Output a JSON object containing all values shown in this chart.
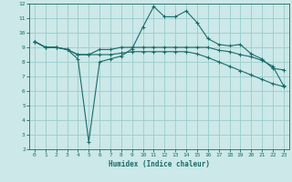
{
  "xlabel": "Humidex (Indice chaleur)",
  "bg_color": "#cce8e8",
  "grid_color": "#99cccc",
  "line_color": "#1a6b6b",
  "xlim": [
    -0.5,
    23.5
  ],
  "ylim": [
    2,
    12
  ],
  "xticks": [
    0,
    1,
    2,
    3,
    4,
    5,
    6,
    7,
    8,
    9,
    10,
    11,
    12,
    13,
    14,
    15,
    16,
    17,
    18,
    19,
    20,
    21,
    22,
    23
  ],
  "yticks": [
    2,
    3,
    4,
    5,
    6,
    7,
    8,
    9,
    10,
    11,
    12
  ],
  "line1_x": [
    0,
    1,
    2,
    3,
    4,
    5,
    6,
    7,
    8,
    9,
    10,
    11,
    12,
    13,
    14,
    15,
    16,
    17,
    18,
    19,
    20,
    21,
    22,
    23
  ],
  "line1_y": [
    9.4,
    9.0,
    9.0,
    8.85,
    8.2,
    2.5,
    8.0,
    8.2,
    8.4,
    8.9,
    10.4,
    11.8,
    11.1,
    11.1,
    11.5,
    10.7,
    9.6,
    9.2,
    9.1,
    9.2,
    8.55,
    8.2,
    7.55,
    7.45
  ],
  "line2_x": [
    0,
    1,
    2,
    3,
    4,
    5,
    6,
    7,
    8,
    9,
    10,
    11,
    12,
    13,
    14,
    15,
    16,
    17,
    18,
    19,
    20,
    21,
    22,
    23
  ],
  "line2_y": [
    9.4,
    9.0,
    9.0,
    8.85,
    8.5,
    8.5,
    8.85,
    8.85,
    9.0,
    9.0,
    9.0,
    9.0,
    9.0,
    9.0,
    9.0,
    9.0,
    9.0,
    8.8,
    8.7,
    8.5,
    8.35,
    8.1,
    7.7,
    6.35
  ],
  "line3_x": [
    0,
    1,
    2,
    3,
    4,
    5,
    6,
    7,
    8,
    9,
    10,
    11,
    12,
    13,
    14,
    15,
    16,
    17,
    18,
    19,
    20,
    21,
    22,
    23
  ],
  "line3_y": [
    9.4,
    9.0,
    9.0,
    8.85,
    8.5,
    8.5,
    8.5,
    8.5,
    8.6,
    8.7,
    8.7,
    8.7,
    8.7,
    8.7,
    8.7,
    8.55,
    8.3,
    8.0,
    7.7,
    7.4,
    7.1,
    6.8,
    6.5,
    6.3
  ]
}
